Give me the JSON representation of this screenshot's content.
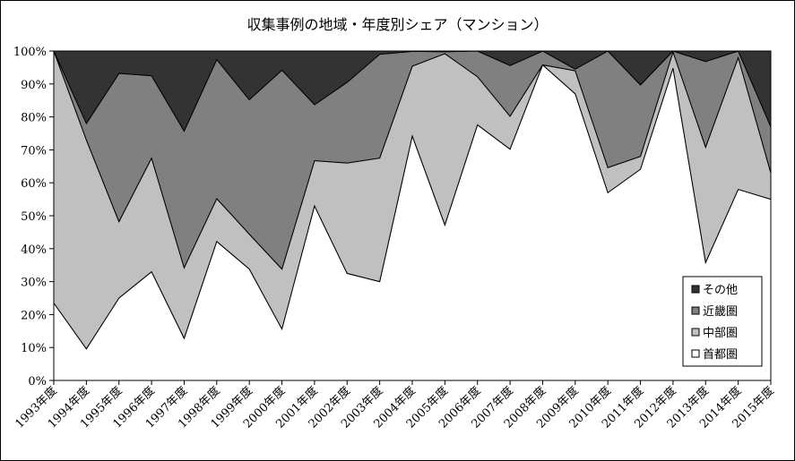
{
  "chart_data": {
    "type": "area",
    "stacked": true,
    "title": "収集事例の地域・年度別シェア（マンション）",
    "xlabel": "",
    "ylabel": "",
    "ylim": [
      0,
      100
    ],
    "y_ticks": [
      "0%",
      "10%",
      "20%",
      "30%",
      "40%",
      "50%",
      "60%",
      "70%",
      "80%",
      "90%",
      "100%"
    ],
    "categories": [
      "1993年度",
      "1994年度",
      "1995年度",
      "1996年度",
      "1997年度",
      "1998年度",
      "1999年度",
      "2000年度",
      "2001年度",
      "2002年度",
      "2003年度",
      "2004年度",
      "2005年度",
      "2006年度",
      "2007年度",
      "2008年度",
      "2009年度",
      "2010年度",
      "2011年度",
      "2012年度",
      "2013年度",
      "2014年度",
      "2015年度"
    ],
    "series": [
      {
        "name": "首都圏",
        "color": "#ffffff",
        "values": [
          23.5,
          9.6,
          25.0,
          33.0,
          12.8,
          42.2,
          33.8,
          15.6,
          53.0,
          32.5,
          30.0,
          74.2,
          47.2,
          77.6,
          70.2,
          95.8,
          87.0,
          57.0,
          64.1,
          94.8,
          35.8,
          58.0,
          55.0
        ]
      },
      {
        "name": "中部圏",
        "color": "#c0c0c0",
        "values": [
          76.5,
          63.4,
          23.2,
          34.5,
          21.4,
          13.0,
          10.6,
          18.2,
          13.7,
          33.5,
          37.5,
          21.2,
          52.0,
          14.6,
          10.0,
          0.0,
          7.0,
          7.6,
          3.9,
          4.9,
          35.0,
          40.0,
          8.0
        ]
      },
      {
        "name": "近畿圏",
        "color": "#808080",
        "values": [
          0.0,
          5.0,
          45.0,
          25.0,
          41.5,
          42.2,
          40.8,
          60.4,
          17.0,
          24.5,
          31.5,
          4.5,
          0.6,
          7.8,
          15.4,
          4.2,
          0.5,
          35.4,
          21.7,
          0.3,
          26.0,
          2.0,
          14.0
        ]
      },
      {
        "name": "その他",
        "color": "#333333",
        "values": [
          0.0,
          22.0,
          6.8,
          7.5,
          24.3,
          2.6,
          14.8,
          5.8,
          16.3,
          9.5,
          1.0,
          0.1,
          0.2,
          0.0,
          4.4,
          0.0,
          5.5,
          0.0,
          10.3,
          0.0,
          3.2,
          0.0,
          23.0
        ]
      }
    ],
    "legend_placement": "bottom-right",
    "grid": false
  }
}
